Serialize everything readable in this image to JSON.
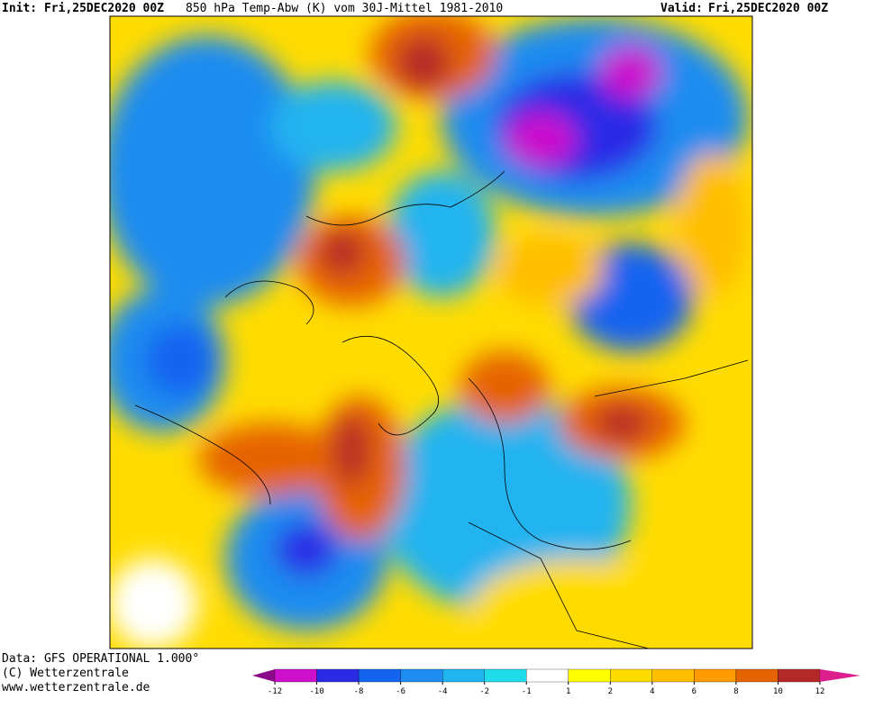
{
  "header": {
    "init": "Init: Fri,25DEC2020 00Z",
    "title": "850 hPa Temp-Abw (K) vom 30J-Mittel 1981-2010",
    "valid_label": "Valid:",
    "valid": "Fri,25DEC2020 00Z"
  },
  "footer": {
    "lines": [
      "Data: GFS OPERATIONAL 1.000°",
      "(C) Wetterzentrale",
      "www.wetterzentrale.de"
    ]
  },
  "colorbar": {
    "ticks": [
      -12,
      -10,
      -8,
      -6,
      -4,
      -2,
      -1,
      1,
      2,
      4,
      6,
      8,
      10,
      12
    ],
    "colors": [
      "#8a0a8a",
      "#cc10cc",
      "#2a2ae6",
      "#1464f0",
      "#1e8cf0",
      "#20b4f0",
      "#20dcea",
      "#ffffff",
      "#ffff00",
      "#ffdc00",
      "#ffbe00",
      "#ff9a00",
      "#e66400",
      "#b42828",
      "#dc1e8c"
    ]
  }
}
